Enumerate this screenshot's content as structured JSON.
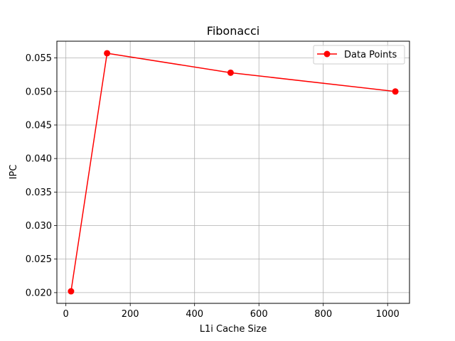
{
  "chart_data": {
    "type": "line",
    "title": "Fibonacci",
    "xlabel": "L1i Cache Size",
    "ylabel": "IPC",
    "x": [
      16,
      128,
      512,
      1024
    ],
    "series": [
      {
        "name": "Data Points",
        "values": [
          0.0202,
          0.0557,
          0.0528,
          0.05
        ],
        "color": "#ff0000",
        "marker": "circle"
      }
    ],
    "xlim": [
      -28,
      1068
    ],
    "ylim": [
      0.0184,
      0.0575
    ],
    "xticks": [
      0,
      200,
      400,
      600,
      800,
      1000
    ],
    "xtick_labels": [
      "0",
      "200",
      "400",
      "600",
      "800",
      "1000"
    ],
    "yticks": [
      0.02,
      0.025,
      0.03,
      0.035,
      0.04,
      0.045,
      0.05,
      0.055
    ],
    "ytick_labels": [
      "0.020",
      "0.025",
      "0.030",
      "0.035",
      "0.040",
      "0.045",
      "0.050",
      "0.055"
    ],
    "grid": true,
    "legend_position": "top-right"
  }
}
